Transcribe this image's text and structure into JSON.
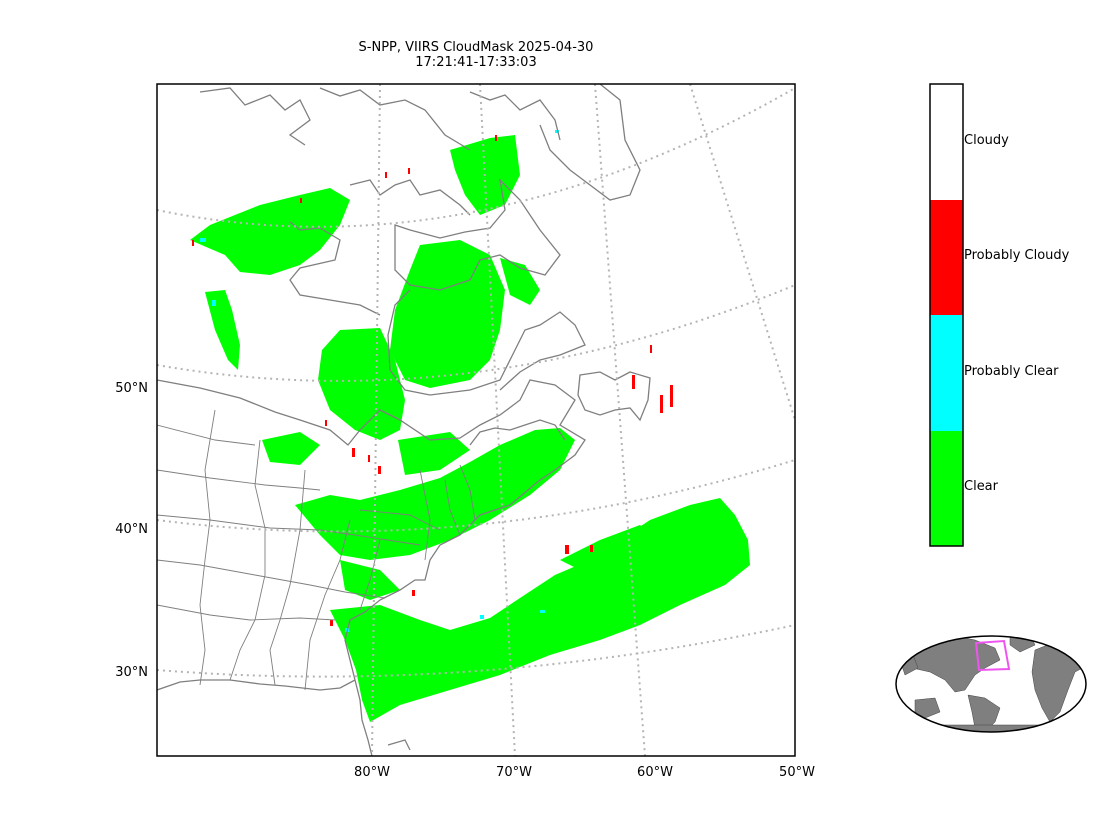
{
  "title": {
    "line1": "S-NPP, VIIRS CloudMask 2025-04-30",
    "line2": "17:21:41-17:33:03"
  },
  "map": {
    "lon_ticks": [
      "80°W",
      "70°W",
      "60°W",
      "50°W"
    ],
    "lat_ticks": [
      "50°N",
      "40°N",
      "30°N"
    ],
    "gridline_color": "#b4b4b4",
    "coast_color": "#7f7f7f"
  },
  "colorbar": {
    "categories": [
      {
        "label": "Cloudy",
        "color": "#ffffff"
      },
      {
        "label": "Probably Cloudy",
        "color": "#ff0000"
      },
      {
        "label": "Probably Clear",
        "color": "#00ffff"
      },
      {
        "label": "Clear",
        "color": "#00ff00"
      }
    ]
  },
  "inset": {
    "land_color": "#7f7f7f",
    "box_color": "#ee55ee"
  }
}
